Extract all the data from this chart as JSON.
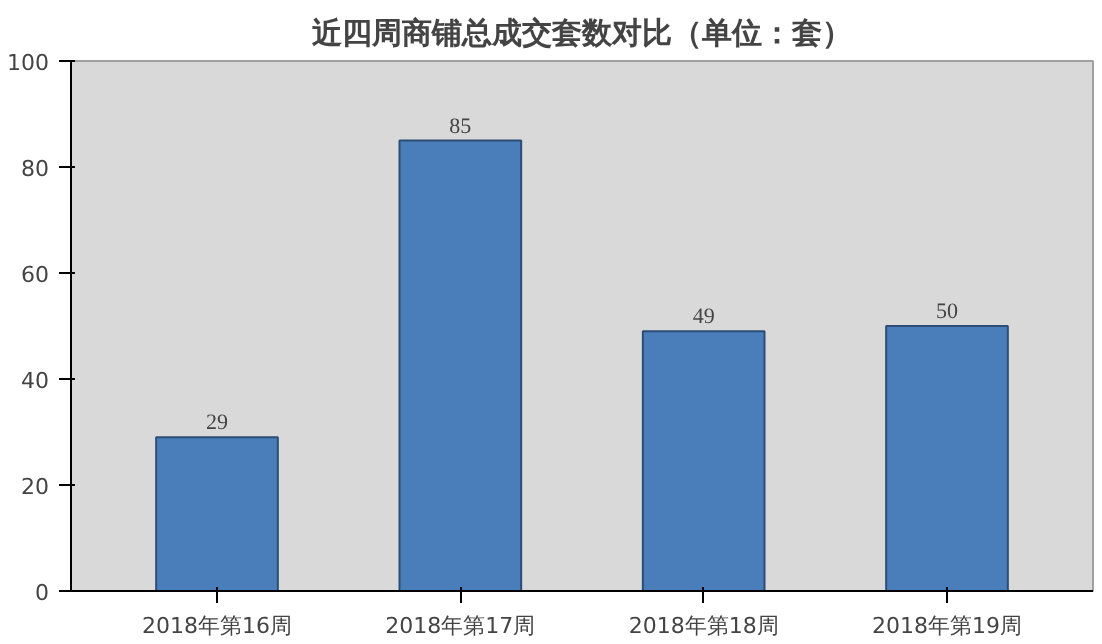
{
  "chart_data": {
    "type": "bar",
    "title": "近四周商铺总成交套数对比（单位：套）",
    "categories": [
      "2018年第16周",
      "2018年第17周",
      "2018年第18周",
      "2018年第19周"
    ],
    "values": [
      29,
      85,
      49,
      50
    ],
    "color": "#4a7ebb",
    "ylim": [
      0,
      100
    ],
    "yticks": [
      0,
      20,
      40,
      60,
      80,
      100
    ],
    "grid": false,
    "data_labels": true
  }
}
